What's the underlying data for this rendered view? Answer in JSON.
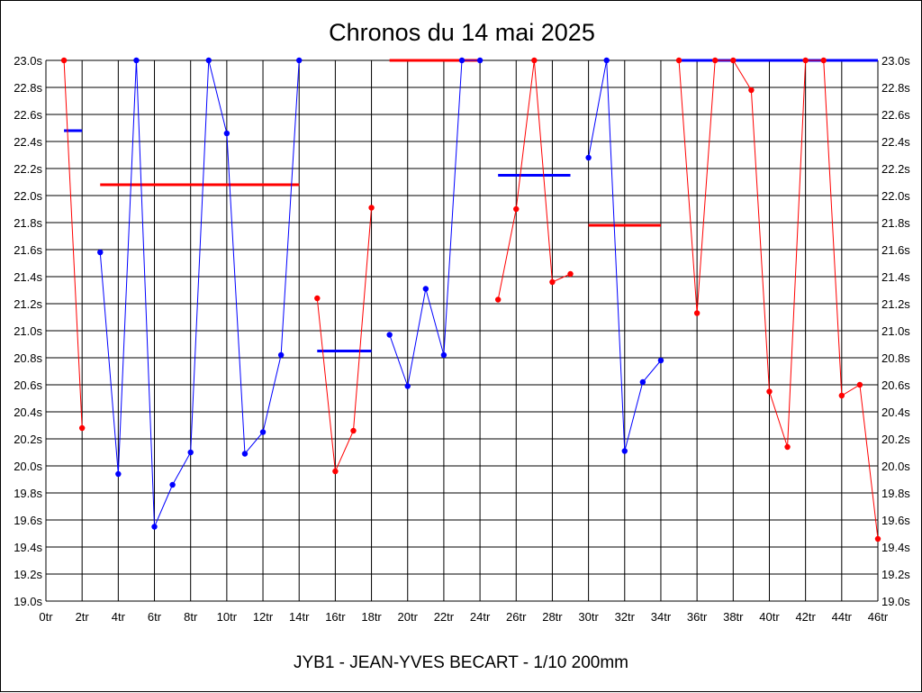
{
  "chart_data": {
    "type": "line",
    "title": "Chronos du 14 mai 2025",
    "footer": "JYB1 - JEAN-YVES BECART - 1/10 200mm",
    "xlabel": "",
    "ylabel": "",
    "xlim": [
      0,
      46
    ],
    "ylim": [
      19.0,
      23.0
    ],
    "grid": true,
    "legend": "none",
    "x_ticks": [
      "0tr",
      "2tr",
      "4tr",
      "6tr",
      "8tr",
      "10tr",
      "12tr",
      "14tr",
      "16tr",
      "18tr",
      "20tr",
      "22tr",
      "24tr",
      "26tr",
      "28tr",
      "30tr",
      "32tr",
      "34tr",
      "36tr",
      "38tr",
      "40tr",
      "42tr",
      "44tr",
      "46tr"
    ],
    "y_ticks": [
      "19.0s",
      "19.2s",
      "19.4s",
      "19.6s",
      "19.8s",
      "20.0s",
      "20.2s",
      "20.4s",
      "20.6s",
      "20.8s",
      "21.0s",
      "21.2s",
      "21.4s",
      "21.6s",
      "21.8s",
      "22.0s",
      "22.2s",
      "22.4s",
      "22.6s",
      "22.8s",
      "23.0s"
    ],
    "colors": {
      "red": "#ff0000",
      "blue": "#0000ff",
      "grid": "#000000"
    },
    "series": [
      {
        "color": "red",
        "x": [
          1,
          2
        ],
        "y": [
          23.0,
          20.28
        ]
      },
      {
        "color": "blue",
        "x": [
          3,
          4,
          5,
          6,
          7,
          8,
          9,
          10,
          11,
          12,
          13,
          14
        ],
        "y": [
          21.58,
          19.94,
          23.0,
          19.55,
          19.86,
          20.1,
          23.0,
          22.46,
          20.09,
          20.25,
          20.82,
          23.0
        ]
      },
      {
        "color": "red",
        "x": [
          15,
          16,
          17,
          18
        ],
        "y": [
          21.24,
          19.96,
          20.26,
          21.91
        ]
      },
      {
        "color": "blue",
        "x": [
          19,
          20,
          21,
          22,
          23,
          24
        ],
        "y": [
          20.97,
          20.59,
          21.31,
          20.82,
          23.0,
          23.0
        ]
      },
      {
        "color": "red",
        "x": [
          25,
          26,
          27,
          28,
          29
        ],
        "y": [
          21.23,
          21.9,
          23.0,
          21.36,
          21.42
        ]
      },
      {
        "color": "blue",
        "x": [
          30,
          31,
          32,
          33,
          34
        ],
        "y": [
          22.28,
          23.0,
          20.11,
          20.62,
          20.78
        ]
      },
      {
        "color": "red",
        "x": [
          35,
          36,
          37,
          38,
          39,
          40,
          41,
          42,
          43,
          44,
          45,
          46
        ],
        "y": [
          23.0,
          21.13,
          23.0,
          23.0,
          22.78,
          20.55,
          20.14,
          23.0,
          23.0,
          20.52,
          20.6,
          19.46
        ]
      }
    ],
    "averages": [
      {
        "color": "blue",
        "x_start": 1,
        "x_end": 2,
        "y": 22.48
      },
      {
        "color": "red",
        "x_start": 3,
        "x_end": 14,
        "y": 22.08
      },
      {
        "color": "blue",
        "x_start": 15,
        "x_end": 18,
        "y": 20.85
      },
      {
        "color": "red",
        "x_start": 19,
        "x_end": 24,
        "y": 23.0
      },
      {
        "color": "blue",
        "x_start": 25,
        "x_end": 29,
        "y": 22.15
      },
      {
        "color": "red",
        "x_start": 30,
        "x_end": 34,
        "y": 21.78
      },
      {
        "color": "blue",
        "x_start": 35,
        "x_end": 46,
        "y": 23.0
      }
    ]
  }
}
